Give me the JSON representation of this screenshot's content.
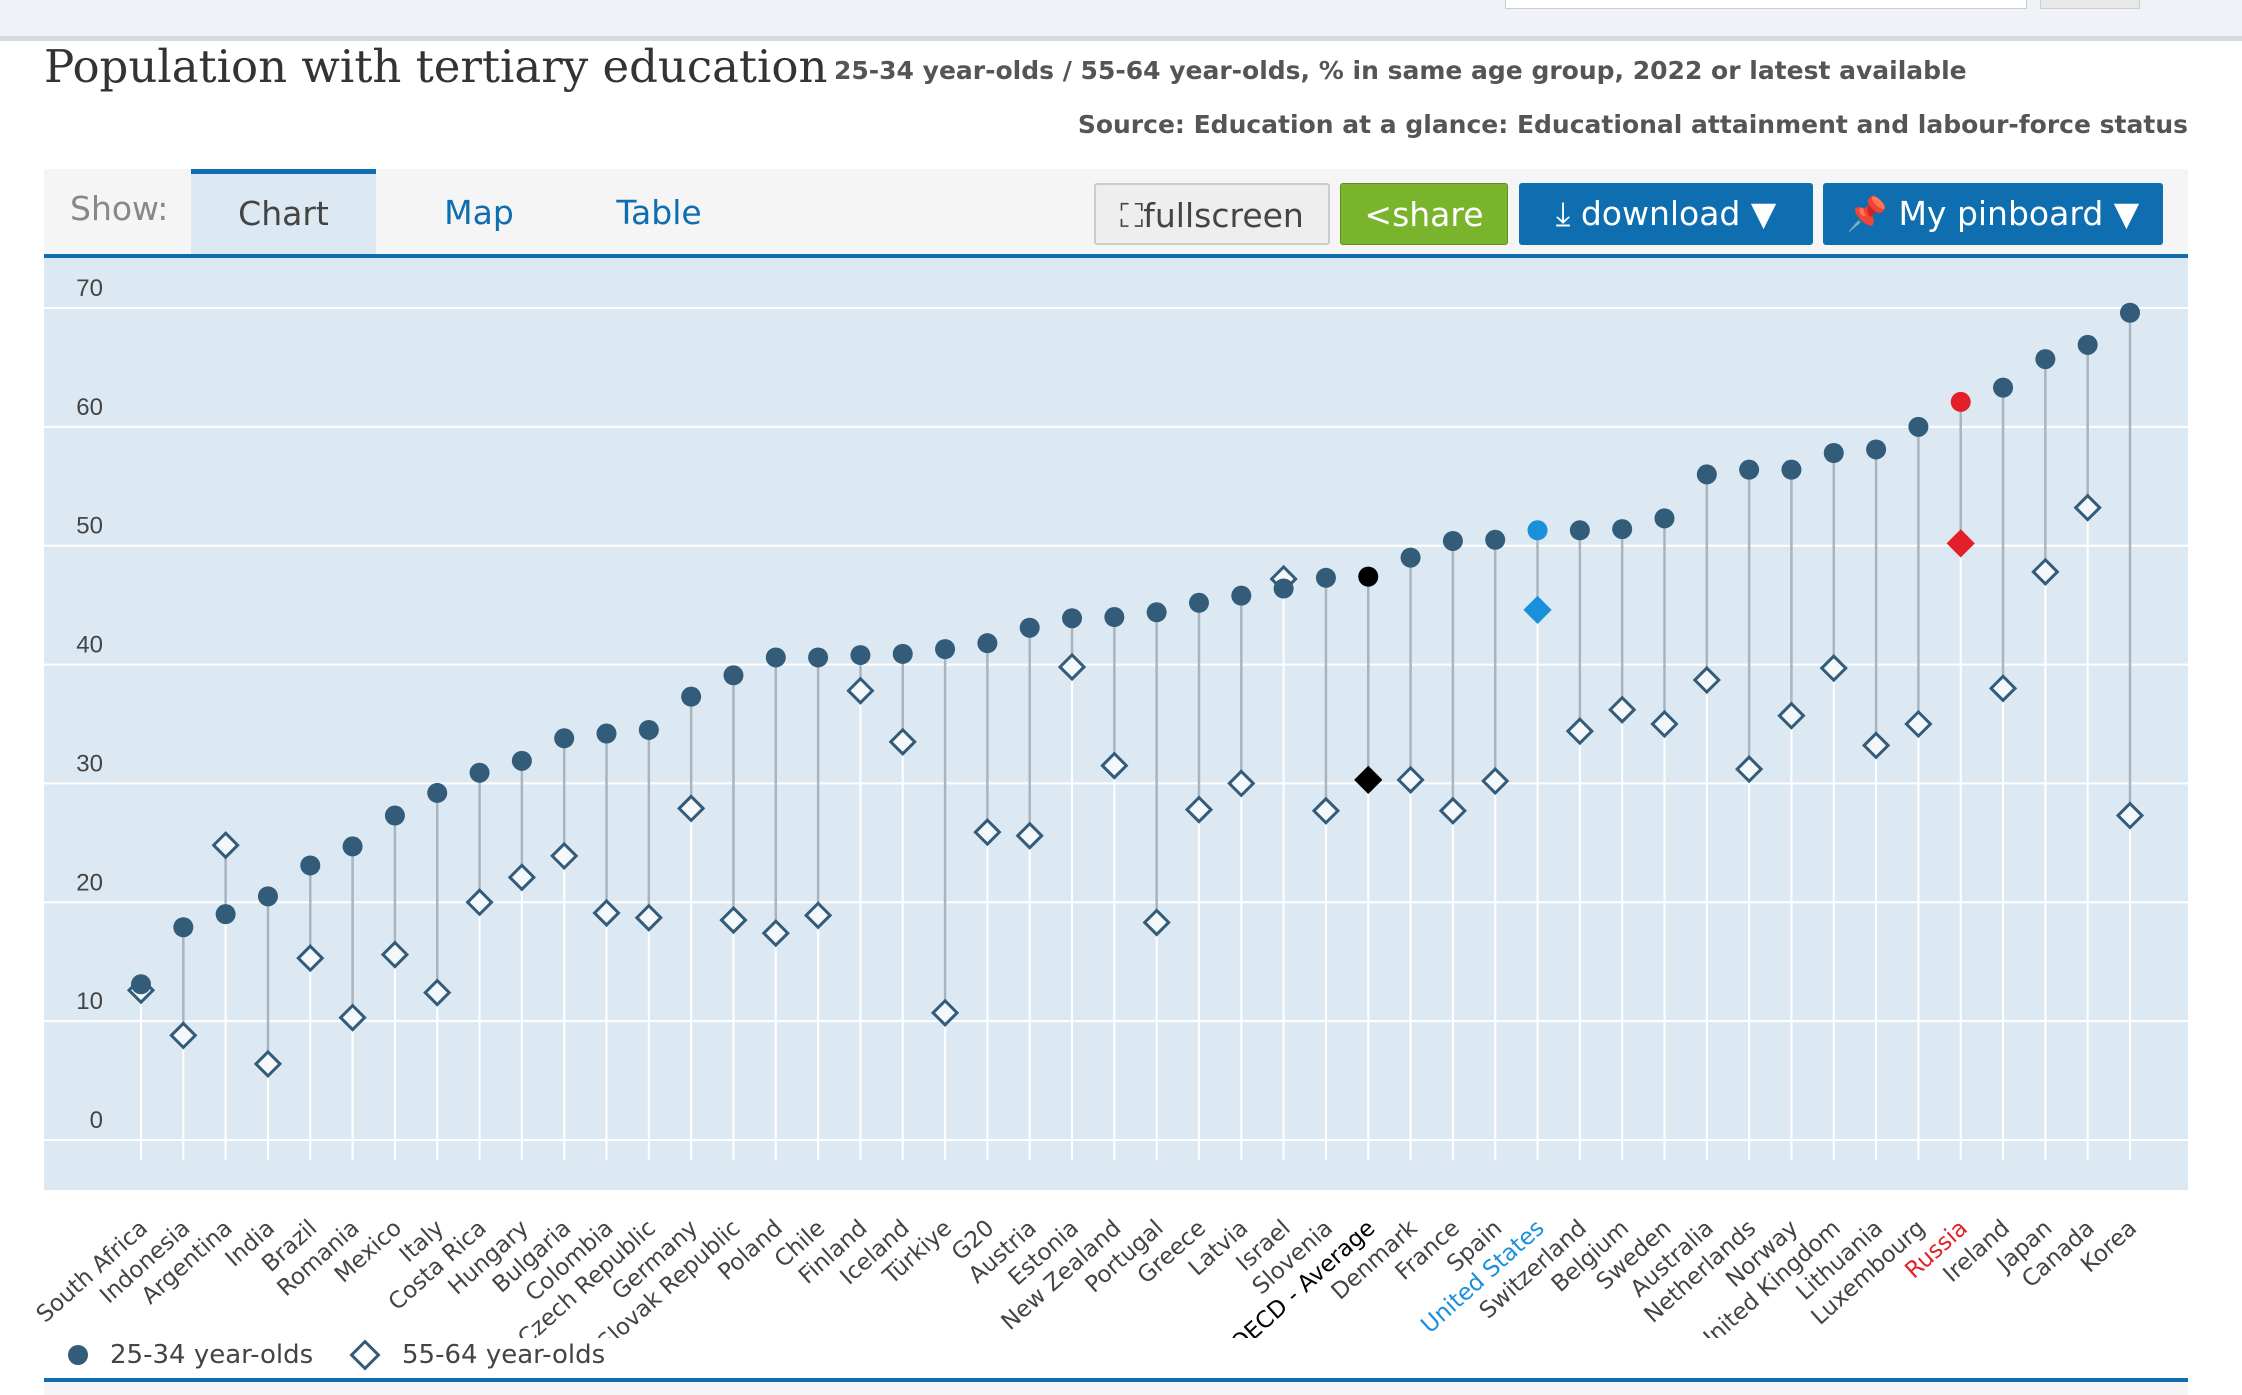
{
  "header": {
    "title": "Population with tertiary education",
    "subtitle": "25-34 year-olds / 55-64 year-olds, % in same age group, 2022 or latest available",
    "source": "Source: Education at a glance: Educational attainment and labour-force status"
  },
  "tabs": {
    "show_label": "Show:",
    "items": [
      "Chart",
      "Map",
      "Table"
    ]
  },
  "buttons": {
    "fullscreen": "fullscreen",
    "share": "share",
    "download": "download ▼",
    "pinboard": "My pinboard ▼"
  },
  "colors": {
    "series": "#335b7a",
    "oecd": "#000000",
    "us": "#1a8fdc",
    "russia": "#e3202a",
    "plot_bg": "#dde9f2"
  },
  "chart_data": {
    "type": "dot-range",
    "title": "Population with tertiary education",
    "ylim": [
      0,
      70
    ],
    "yticks": [
      0,
      10,
      20,
      30,
      40,
      50,
      60,
      70
    ],
    "grid": true,
    "legend_position": "bottom-left",
    "highlight": {
      "OECD - Average": "#000000",
      "United States": "#1a8fdc",
      "Russia": "#e3202a"
    },
    "categories": [
      "South Africa",
      "Indonesia",
      "Argentina",
      "India",
      "Brazil",
      "Romania",
      "Mexico",
      "Italy",
      "Costa Rica",
      "Hungary",
      "Bulgaria",
      "Colombia",
      "Czech Republic",
      "Germany",
      "Slovak Republic",
      "Poland",
      "Chile",
      "Finland",
      "Iceland",
      "Türkiye",
      "G20",
      "Austria",
      "Estonia",
      "New Zealand",
      "Portugal",
      "Greece",
      "Latvia",
      "Israel",
      "Slovenia",
      "OECD - Average",
      "Denmark",
      "France",
      "Spain",
      "United States",
      "Switzerland",
      "Belgium",
      "Sweden",
      "Australia",
      "Netherlands",
      "Norway",
      "United Kingdom",
      "Lithuania",
      "Luxembourg",
      "Russia",
      "Ireland",
      "Japan",
      "Canada",
      "Korea"
    ],
    "series": [
      {
        "name": "25-34 year-olds",
        "marker": "circle",
        "values": [
          13.1,
          17.9,
          19.0,
          20.5,
          23.1,
          24.7,
          27.3,
          29.2,
          30.9,
          31.9,
          33.8,
          34.2,
          34.5,
          37.3,
          39.1,
          40.6,
          40.6,
          40.8,
          40.9,
          41.3,
          41.8,
          43.1,
          43.9,
          44.0,
          44.4,
          45.2,
          45.8,
          46.4,
          47.3,
          47.4,
          49.0,
          50.4,
          50.5,
          51.3,
          51.3,
          51.4,
          52.3,
          56.0,
          56.4,
          56.4,
          57.8,
          58.1,
          60.0,
          62.1,
          63.3,
          65.7,
          66.9,
          69.6
        ]
      },
      {
        "name": "55-64 year-olds",
        "marker": "diamond",
        "values": [
          12.6,
          8.8,
          24.8,
          6.4,
          15.3,
          10.3,
          15.6,
          12.4,
          20.0,
          22.1,
          23.9,
          19.1,
          18.7,
          27.9,
          18.5,
          17.4,
          18.9,
          37.8,
          33.5,
          10.7,
          25.9,
          25.6,
          39.8,
          31.5,
          18.3,
          27.8,
          30.0,
          47.2,
          27.7,
          30.3,
          30.3,
          27.7,
          30.2,
          44.6,
          34.4,
          36.2,
          35.0,
          38.7,
          31.2,
          35.7,
          39.7,
          33.2,
          35.0,
          50.2,
          38.0,
          47.8,
          53.2,
          27.3
        ]
      }
    ]
  }
}
